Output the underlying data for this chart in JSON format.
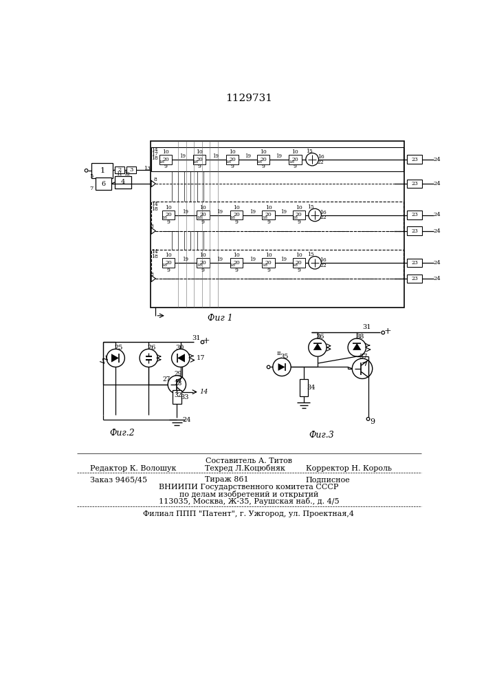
{
  "title": "1129731",
  "fig1_caption": "Фиг 1",
  "fig2_caption": "Фиг.2",
  "fig3_caption": "Фиг.3",
  "footer_line1": "Составитель А. Титов",
  "footer_line2_left": "Редактор К. Волошук",
  "footer_line2_mid": "Техред Л.Коцюбняк",
  "footer_line2_right": "Корректор Н. Король",
  "footer_line3_left": "Заказ 9465/45",
  "footer_line3_mid": "Тираж 861",
  "footer_line3_right": "Подписное",
  "footer_line4": "ВНИИПИ Государственного комитета СССР",
  "footer_line5": "по делам изобретений и открытий",
  "footer_line6": "113035, Москва, Ж-35, Раушская наб., д. 4/5",
  "footer_line7": "Филиал ППП \"Патент\", г. Ужгород, ул. Проектная,4",
  "bg_color": "#ffffff"
}
